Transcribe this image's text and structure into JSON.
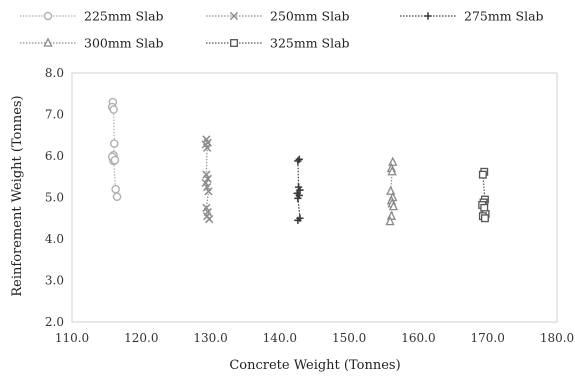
{
  "chart_data": {
    "type": "scatter",
    "title": "",
    "xlabel": "Concrete Weight (Tonnes)",
    "ylabel": "Reinforement Weight (Tonnes)",
    "xlim": [
      110.0,
      180.0
    ],
    "ylim": [
      2.0,
      8.0
    ],
    "x_ticks": [
      "110.0",
      "120.0",
      "130.0",
      "140.0",
      "150.0",
      "160.0",
      "170.0",
      "180.0"
    ],
    "y_ticks": [
      "2.0",
      "3.0",
      "4.0",
      "5.0",
      "6.0",
      "7.0",
      "8.0"
    ],
    "x_tick_values": [
      110,
      120,
      130,
      140,
      150,
      160,
      170,
      180
    ],
    "y_tick_values": [
      2,
      3,
      4,
      5,
      6,
      7,
      8
    ],
    "grid": false,
    "legend_position": "top",
    "series": [
      {
        "name": "225mm Slab",
        "marker": "circle",
        "color": "#b0b0b0",
        "points": [
          [
            115.9,
            7.3
          ],
          [
            115.8,
            7.18
          ],
          [
            116.0,
            7.12
          ],
          [
            116.1,
            6.3
          ],
          [
            116.0,
            6.02
          ],
          [
            115.9,
            5.95
          ],
          [
            116.1,
            5.92
          ],
          [
            116.0,
            5.88
          ],
          [
            115.8,
            5.98
          ],
          [
            116.2,
            5.9
          ],
          [
            116.3,
            5.2
          ],
          [
            116.5,
            5.02
          ]
        ]
      },
      {
        "name": "250mm Slab",
        "marker": "x",
        "color": "#8c8c8c",
        "points": [
          [
            129.4,
            6.4
          ],
          [
            129.6,
            6.32
          ],
          [
            129.3,
            6.28
          ],
          [
            129.5,
            6.2
          ],
          [
            129.4,
            5.55
          ],
          [
            129.6,
            5.45
          ],
          [
            129.3,
            5.35
          ],
          [
            129.5,
            5.25
          ],
          [
            129.7,
            5.15
          ],
          [
            129.4,
            4.75
          ],
          [
            129.6,
            4.65
          ],
          [
            129.5,
            4.55
          ],
          [
            129.8,
            4.48
          ]
        ]
      },
      {
        "name": "275mm Slab",
        "marker": "plus",
        "color": "#3a3a3a",
        "points": [
          [
            142.8,
            5.92
          ],
          [
            142.6,
            5.88
          ],
          [
            142.7,
            5.25
          ],
          [
            142.9,
            5.18
          ],
          [
            142.5,
            5.1
          ],
          [
            142.8,
            5.05
          ],
          [
            142.6,
            4.98
          ],
          [
            142.9,
            4.5
          ],
          [
            142.6,
            4.45
          ]
        ]
      },
      {
        "name": "300mm Slab",
        "marker": "triangle",
        "color": "#8a8a8a",
        "points": [
          [
            156.3,
            5.85
          ],
          [
            156.1,
            5.7
          ],
          [
            156.2,
            5.62
          ],
          [
            156.0,
            5.15
          ],
          [
            156.3,
            5.0
          ],
          [
            156.1,
            4.92
          ],
          [
            156.2,
            4.85
          ],
          [
            156.4,
            4.78
          ],
          [
            156.1,
            4.55
          ],
          [
            155.9,
            4.42
          ]
        ]
      },
      {
        "name": "325mm Slab",
        "marker": "square",
        "color": "#555555",
        "points": [
          [
            169.5,
            5.62
          ],
          [
            169.3,
            5.55
          ],
          [
            169.6,
            4.95
          ],
          [
            169.4,
            4.88
          ],
          [
            169.2,
            4.82
          ],
          [
            169.5,
            4.75
          ],
          [
            169.7,
            4.6
          ],
          [
            169.3,
            4.55
          ],
          [
            169.6,
            4.5
          ]
        ]
      }
    ]
  }
}
